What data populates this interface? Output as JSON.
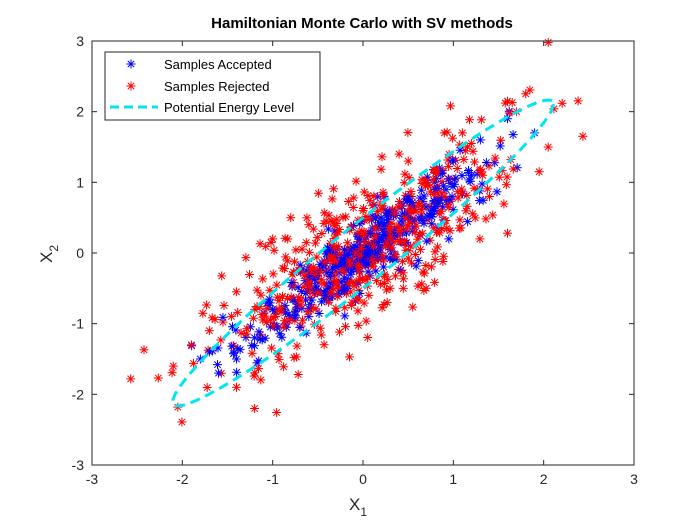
{
  "chart_data": {
    "type": "scatter",
    "title": "Hamiltonian Monte Carlo with SV methods",
    "xlabel": {
      "main": "X",
      "sub": "1"
    },
    "ylabel": {
      "main": "X",
      "sub": "2"
    },
    "xlim": [
      -3,
      3
    ],
    "ylim": [
      -3,
      3
    ],
    "xticks": [
      "-3",
      "-2",
      "-1",
      "0",
      "1",
      "2",
      "3"
    ],
    "yticks": [
      "-3",
      "-2",
      "-1",
      "0",
      "1",
      "2",
      "3"
    ],
    "grid": false,
    "legend_position": "top-left",
    "legend": [
      {
        "label": "Samples Accepted",
        "color": "#0000ff",
        "marker": "asterisk"
      },
      {
        "label": "Samples Rejected",
        "color": "#ff0000",
        "marker": "asterisk"
      },
      {
        "label": "Potential Energy Level",
        "color": "#00e5ee",
        "style": "dashed"
      }
    ],
    "series": [
      {
        "name": "Samples Accepted",
        "color": "#0000ff",
        "sample_count": 400,
        "sample_seed": 17,
        "distribution": {
          "mean": [
            0,
            0
          ],
          "std": [
            0.62,
            0.62
          ],
          "correlation": 0.92
        },
        "points": [
          [
            1.9,
            1.7
          ],
          [
            1.6,
            1.9
          ],
          [
            1.3,
            1.6
          ],
          [
            1.0,
            1.3
          ],
          [
            0.95,
            0.2
          ],
          [
            -1.6,
            -1.7
          ],
          [
            -1.8,
            -1.5
          ],
          [
            -1.7,
            -1.4
          ],
          [
            -1.4,
            -1.5
          ],
          [
            -1.2,
            -1.2
          ],
          [
            -1.0,
            -0.8
          ],
          [
            -0.6,
            -0.9
          ],
          [
            0.2,
            0.5
          ],
          [
            0.5,
            0.8
          ],
          [
            0.8,
            0.9
          ],
          [
            1.2,
            1.1
          ],
          [
            -0.3,
            -0.2
          ],
          [
            0.0,
            -0.1
          ],
          [
            -0.1,
            0.1
          ],
          [
            0.3,
            0.1
          ]
        ]
      },
      {
        "name": "Samples Rejected",
        "color": "#ff0000",
        "sample_count": 500,
        "sample_seed": 91,
        "distribution": {
          "mean": [
            0,
            0
          ],
          "std": [
            0.82,
            0.82
          ],
          "correlation": 0.8
        },
        "points": [
          [
            2.05,
            2.98
          ],
          [
            1.6,
            2.15
          ],
          [
            1.6,
            0.28
          ],
          [
            1.95,
            1.15
          ],
          [
            2.05,
            1.5
          ],
          [
            1.1,
            1.7
          ],
          [
            1.2,
            1.55
          ],
          [
            -2.1,
            -1.6
          ],
          [
            -2.05,
            -2.18
          ],
          [
            -1.2,
            -2.2
          ],
          [
            -1.4,
            -1.9
          ],
          [
            -1.7,
            -1.1
          ],
          [
            -0.15,
            -1.47
          ],
          [
            0.9,
            1.7
          ],
          [
            0.5,
            1.3
          ],
          [
            -0.6,
            0.4
          ],
          [
            -0.8,
            0.5
          ],
          [
            0.0,
            0.6
          ],
          [
            1.7,
            2.0
          ],
          [
            -1.9,
            -1.3
          ],
          [
            0.7,
            -0.5
          ],
          [
            0.3,
            -0.5
          ],
          [
            -1.0,
            0.2
          ],
          [
            0.4,
            1.4
          ],
          [
            1.4,
            0.8
          ]
        ]
      }
    ],
    "ellipse": {
      "name": "Potential Energy Level",
      "center": [
        0,
        0
      ],
      "semi_major": 3.0,
      "semi_minor": 0.35,
      "angle_deg": 45.8
    }
  }
}
